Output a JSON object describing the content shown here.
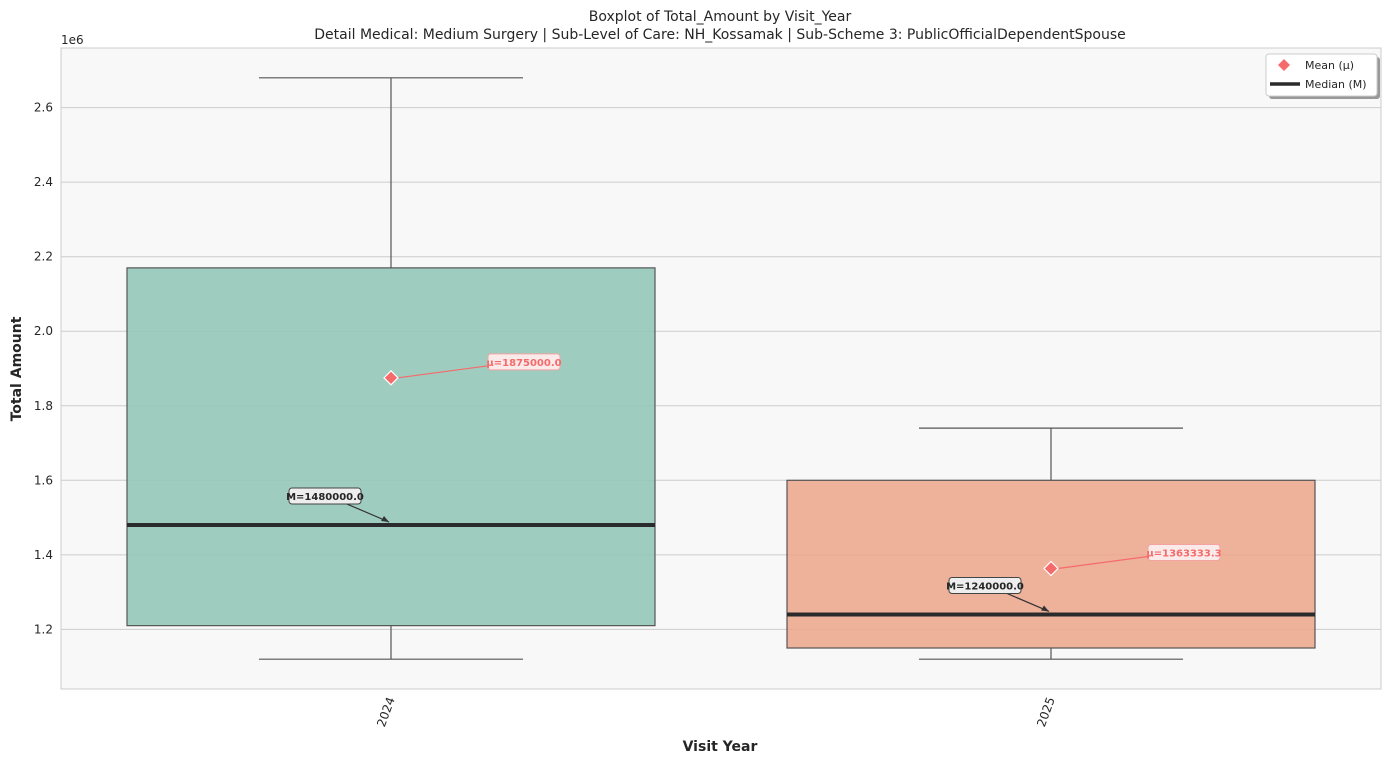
{
  "chart_data": {
    "type": "box",
    "title": "Boxplot of Total_Amount by Visit_Year",
    "subtitle": "Detail Medical: Medium Surgery | Sub-Level of Care: NH_Kossamak | Sub-Scheme 3: PublicOfficialDependentSpouse",
    "xlabel": "Visit Year",
    "ylabel": "Total Amount",
    "y_offset_label": "1e6",
    "ylim": [
      1040000,
      2760000
    ],
    "y_ticks": [
      1200000,
      1400000,
      1600000,
      1800000,
      2000000,
      2200000,
      2400000,
      2600000
    ],
    "y_tick_labels": [
      "1.2",
      "1.4",
      "1.6",
      "1.8",
      "2.0",
      "2.2",
      "2.4",
      "2.6"
    ],
    "grid": true,
    "legend_position": "top-right",
    "legend": [
      {
        "label": "Mean (μ)",
        "marker": "diamond",
        "color": "#f56b6b"
      },
      {
        "label": "Median (M)",
        "marker": "line",
        "color": "#2b2b2b"
      }
    ],
    "categories": [
      "2024",
      "2025"
    ],
    "boxes": [
      {
        "category": "2024",
        "whisker_low": 1120000,
        "q1": 1210000,
        "median": 1480000,
        "q3": 2170000,
        "whisker_high": 2680000,
        "mean": 1875000,
        "mean_label": "μ=1875000.0",
        "median_label": "M=1480000.0",
        "color": "#8ec5b5"
      },
      {
        "category": "2025",
        "whisker_low": 1120000,
        "q1": 1150000,
        "median": 1240000,
        "q3": 1600000,
        "whisker_high": 1740000,
        "mean": 1363333.3,
        "mean_label": "μ=1363333.3",
        "median_label": "M=1240000.0",
        "color": "#eca48a"
      }
    ],
    "colors": {
      "plot_bg": "#f8f8f8",
      "grid": "#cccccc",
      "edge": "#555555",
      "median_line": "#2b2b2b",
      "mean_marker": "#f56b6b"
    }
  }
}
